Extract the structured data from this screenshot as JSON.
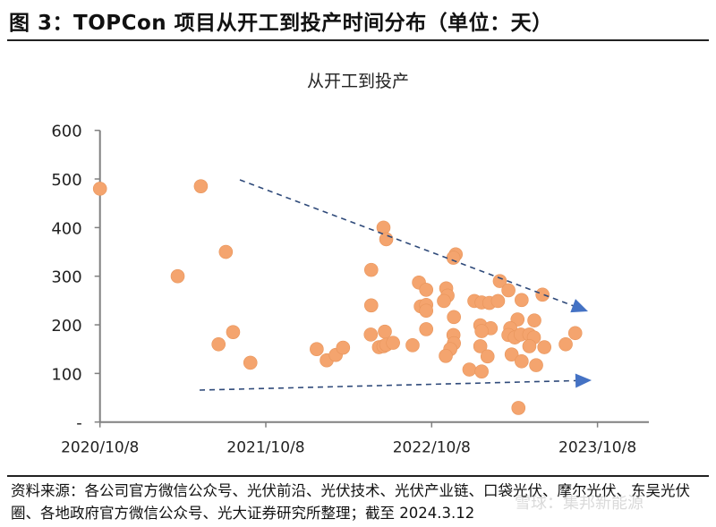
{
  "figure_title": "图 3：TOPCon 项目从开工到投产时间分布（单位：天）",
  "source_note": "资料来源：各公司官方微信公众号、光伏前沿、光伏技术、光伏产业链、口袋光伏、摩尔光伏、东吴光伏圈、各地政府官方微信公众号、光大证券研究所整理；截至 2024.3.12",
  "watermark": "雪球：集邦新能源",
  "colors": {
    "points": "#F4A46E",
    "arrow_line": "#2F4A7A",
    "arrow_head": "#4472C4",
    "axis": "#808080"
  },
  "chart_data": {
    "type": "scatter",
    "title": "从开工到投产",
    "xlabel": "",
    "ylabel": "",
    "ylim": [
      0,
      600
    ],
    "xlim": [
      "2020-10-08",
      "2024-01-15"
    ],
    "y_ticks": [
      "-",
      "100",
      "200",
      "300",
      "400",
      "500",
      "600"
    ],
    "y_tick_values": [
      0,
      100,
      200,
      300,
      400,
      500,
      600
    ],
    "x_ticks": [
      "2020/10/8",
      "2021/10/8",
      "2022/10/8",
      "2023/10/8"
    ],
    "x_tick_values": [
      "2020-10-08",
      "2021-10-08",
      "2022-10-08",
      "2023-10-08"
    ],
    "grid": false,
    "legend": "none",
    "annotations": [
      {
        "type": "dashed-arrow",
        "direction": "downward trend (upper bound)"
      },
      {
        "type": "dashed-arrow",
        "direction": "slight upward trend (lower bound)"
      }
    ],
    "points": [
      {
        "x": "2020-10-08",
        "y": 480
      },
      {
        "x": "2021-05-18",
        "y": 485
      },
      {
        "x": "2021-03-28",
        "y": 300
      },
      {
        "x": "2021-07-12",
        "y": 350
      },
      {
        "x": "2021-06-26",
        "y": 160
      },
      {
        "x": "2021-07-28",
        "y": 185
      },
      {
        "x": "2021-09-04",
        "y": 122
      },
      {
        "x": "2022-01-28",
        "y": 150
      },
      {
        "x": "2022-02-19",
        "y": 127
      },
      {
        "x": "2022-03-11",
        "y": 138
      },
      {
        "x": "2022-03-27",
        "y": 153
      },
      {
        "x": "2022-06-24",
        "y": 400
      },
      {
        "x": "2022-06-30",
        "y": 376
      },
      {
        "x": "2022-05-28",
        "y": 313
      },
      {
        "x": "2022-05-28",
        "y": 240
      },
      {
        "x": "2022-05-27",
        "y": 180
      },
      {
        "x": "2022-06-27",
        "y": 186
      },
      {
        "x": "2022-06-14",
        "y": 154
      },
      {
        "x": "2022-06-24",
        "y": 156
      },
      {
        "x": "2022-06-30",
        "y": 159
      },
      {
        "x": "2022-07-15",
        "y": 163
      },
      {
        "x": "2022-08-27",
        "y": 158
      },
      {
        "x": "2022-09-10",
        "y": 287
      },
      {
        "x": "2022-09-26",
        "y": 272
      },
      {
        "x": "2022-09-14",
        "y": 238
      },
      {
        "x": "2022-09-26",
        "y": 241
      },
      {
        "x": "2022-09-26",
        "y": 229
      },
      {
        "x": "2022-09-26",
        "y": 191
      },
      {
        "x": "2022-11-30",
        "y": 345
      },
      {
        "x": "2022-11-25",
        "y": 338
      },
      {
        "x": "2022-11-09",
        "y": 275
      },
      {
        "x": "2022-11-12",
        "y": 260
      },
      {
        "x": "2022-11-04",
        "y": 249
      },
      {
        "x": "2022-11-26",
        "y": 216
      },
      {
        "x": "2022-11-25",
        "y": 179
      },
      {
        "x": "2022-11-26",
        "y": 162
      },
      {
        "x": "2022-11-18",
        "y": 150
      },
      {
        "x": "2022-11-08",
        "y": 136
      },
      {
        "x": "2023-01-10",
        "y": 249
      },
      {
        "x": "2023-01-26",
        "y": 246
      },
      {
        "x": "2023-02-12",
        "y": 245
      },
      {
        "x": "2023-03-03",
        "y": 249
      },
      {
        "x": "2022-12-30",
        "y": 108
      },
      {
        "x": "2023-01-26",
        "y": 104
      },
      {
        "x": "2023-01-23",
        "y": 199
      },
      {
        "x": "2023-02-15",
        "y": 193
      },
      {
        "x": "2023-01-26",
        "y": 187
      },
      {
        "x": "2023-01-23",
        "y": 156
      },
      {
        "x": "2023-02-08",
        "y": 135
      },
      {
        "x": "2023-03-07",
        "y": 290
      },
      {
        "x": "2023-03-26",
        "y": 271
      },
      {
        "x": "2023-04-24",
        "y": 251
      },
      {
        "x": "2023-04-15",
        "y": 211
      },
      {
        "x": "2023-03-30",
        "y": 193
      },
      {
        "x": "2023-03-26",
        "y": 179
      },
      {
        "x": "2023-04-09",
        "y": 174
      },
      {
        "x": "2023-04-22",
        "y": 180
      },
      {
        "x": "2023-05-11",
        "y": 180
      },
      {
        "x": "2023-05-21",
        "y": 174
      },
      {
        "x": "2023-05-11",
        "y": 156
      },
      {
        "x": "2023-04-02",
        "y": 139
      },
      {
        "x": "2023-04-24",
        "y": 125
      },
      {
        "x": "2023-05-26",
        "y": 117
      },
      {
        "x": "2023-05-22",
        "y": 209
      },
      {
        "x": "2023-06-13",
        "y": 154
      },
      {
        "x": "2023-06-09",
        "y": 262
      },
      {
        "x": "2023-07-30",
        "y": 160
      },
      {
        "x": "2023-08-20",
        "y": 183
      },
      {
        "x": "2023-04-17",
        "y": 29
      }
    ]
  }
}
